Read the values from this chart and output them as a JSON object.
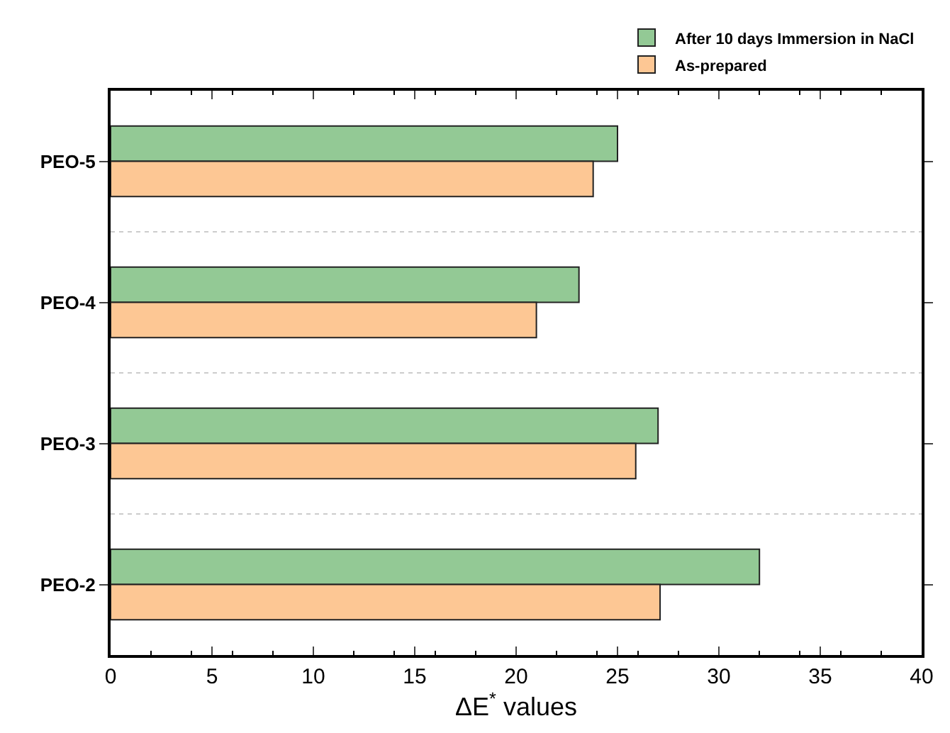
{
  "chart_data": {
    "type": "bar",
    "orientation": "horizontal",
    "xlabel": "ΔE$^{*}$ values",
    "categories": [
      "PEO-5",
      "PEO-4",
      "PEO-3",
      "PEO-2"
    ],
    "series": [
      {
        "name": "After 10 days Immersion in NaCl",
        "color": "#93c995",
        "values": [
          25.0,
          23.1,
          27.0,
          32.0
        ]
      },
      {
        "name": "As-prepared",
        "color": "#fdc794",
        "values": [
          23.8,
          21.0,
          25.9,
          27.1
        ]
      }
    ],
    "xlim": [
      0,
      40
    ],
    "xticks": [
      0,
      5,
      10,
      15,
      20,
      25,
      30,
      35,
      40
    ],
    "grid": "y",
    "legend": "top right"
  }
}
